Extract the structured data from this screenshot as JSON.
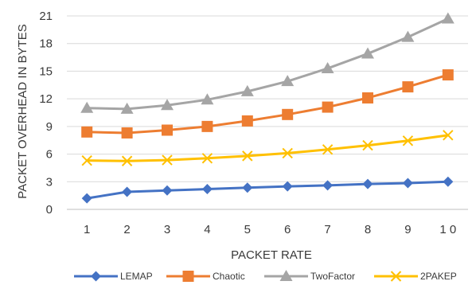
{
  "chart_data": {
    "type": "line",
    "x": [
      1,
      2,
      3,
      4,
      5,
      6,
      7,
      8,
      9,
      10
    ],
    "x_tick_labels": [
      "1",
      "2",
      "3",
      "4",
      "5",
      "6",
      "7",
      "8",
      "9",
      "1 0"
    ],
    "xlabel": "PACKET RATE",
    "ylabel": "PACKET OVERHEAD IN BYTES",
    "ylim": [
      0,
      21
    ],
    "y_ticks": [
      0,
      3,
      6,
      9,
      12,
      15,
      18,
      21
    ],
    "grid": "horizontal",
    "legend_position": "bottom",
    "series": [
      {
        "name": "LEMAP",
        "color": "#4472C4",
        "marker": "diamond",
        "values": [
          1.2,
          1.9,
          2.05,
          2.2,
          2.35,
          2.5,
          2.6,
          2.75,
          2.85,
          3.0
        ]
      },
      {
        "name": "Chaotic",
        "color": "#ED7D31",
        "marker": "square",
        "values": [
          8.4,
          8.3,
          8.6,
          9.0,
          9.6,
          10.3,
          11.1,
          12.1,
          13.3,
          14.6
        ]
      },
      {
        "name": "TwoFactor",
        "color": "#A5A5A5",
        "marker": "triangle",
        "values": [
          11.0,
          10.9,
          11.3,
          11.9,
          12.8,
          13.9,
          15.3,
          16.9,
          18.7,
          20.7
        ]
      },
      {
        "name": "2PAKEP",
        "color": "#FFC000",
        "marker": "x",
        "values": [
          5.3,
          5.25,
          5.35,
          5.55,
          5.8,
          6.1,
          6.5,
          6.95,
          7.45,
          8.05
        ]
      }
    ]
  }
}
